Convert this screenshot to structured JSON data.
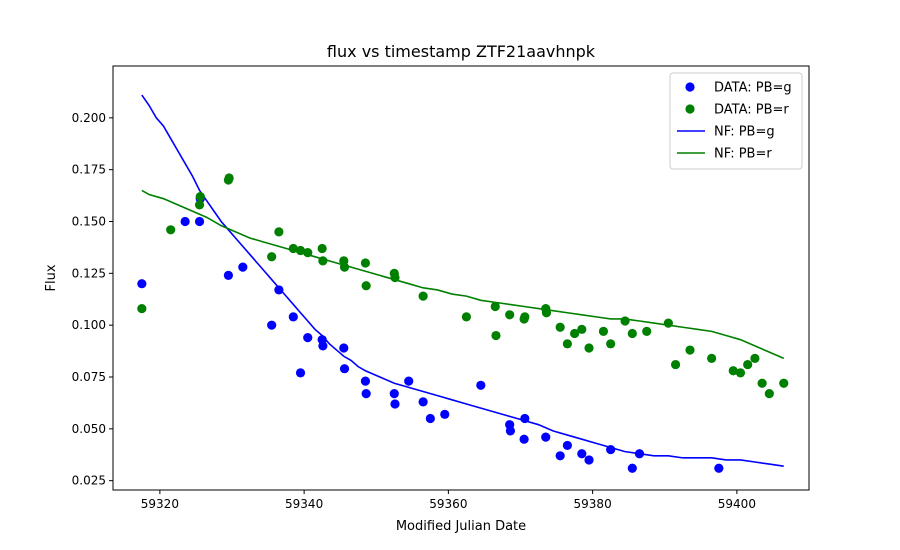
{
  "chart_data": {
    "type": "scatter",
    "title": "flux vs timestamp ZTF21aavhnpk",
    "xlabel": "Modified Julian Date",
    "ylabel": "Flux",
    "xlim": [
      59313.5,
      59410
    ],
    "ylim": [
      0.0205,
      0.225
    ],
    "x_ticks": [
      59320,
      59340,
      59360,
      59380,
      59400
    ],
    "y_ticks": [
      0.025,
      0.05,
      0.075,
      0.1,
      0.125,
      0.15,
      0.175,
      0.2
    ],
    "x_tick_labels": [
      "59320",
      "59340",
      "59360",
      "59380",
      "59400"
    ],
    "y_tick_labels": [
      "0.025",
      "0.050",
      "0.075",
      "0.100",
      "0.125",
      "0.150",
      "0.175",
      "0.200"
    ],
    "grid": false,
    "legend_position": "top-right",
    "series": [
      {
        "name": "DATA: PB=g",
        "kind": "scatter",
        "color": "#0000ff",
        "points": [
          [
            59317.5,
            0.12
          ],
          [
            59323.5,
            0.15
          ],
          [
            59325.5,
            0.15
          ],
          [
            59325.6,
            0.161
          ],
          [
            59329.5,
            0.124
          ],
          [
            59331.5,
            0.128
          ],
          [
            59335.5,
            0.1
          ],
          [
            59336.5,
            0.117
          ],
          [
            59338.5,
            0.104
          ],
          [
            59339.5,
            0.077
          ],
          [
            59340.5,
            0.094
          ],
          [
            59342.5,
            0.093
          ],
          [
            59342.6,
            0.09
          ],
          [
            59345.5,
            0.089
          ],
          [
            59345.6,
            0.079
          ],
          [
            59348.5,
            0.073
          ],
          [
            59348.6,
            0.067
          ],
          [
            59352.5,
            0.067
          ],
          [
            59352.6,
            0.062
          ],
          [
            59354.5,
            0.073
          ],
          [
            59356.5,
            0.063
          ],
          [
            59357.5,
            0.055
          ],
          [
            59359.5,
            0.057
          ],
          [
            59364.5,
            0.071
          ],
          [
            59368.5,
            0.052
          ],
          [
            59368.6,
            0.049
          ],
          [
            59370.5,
            0.045
          ],
          [
            59370.6,
            0.055
          ],
          [
            59373.5,
            0.046
          ],
          [
            59375.5,
            0.037
          ],
          [
            59376.5,
            0.042
          ],
          [
            59378.5,
            0.038
          ],
          [
            59379.5,
            0.035
          ],
          [
            59382.5,
            0.04
          ],
          [
            59385.5,
            0.031
          ],
          [
            59386.5,
            0.038
          ],
          [
            59397.5,
            0.031
          ]
        ]
      },
      {
        "name": "DATA: PB=r",
        "kind": "scatter",
        "color": "#008000",
        "points": [
          [
            59317.5,
            0.108
          ],
          [
            59321.5,
            0.146
          ],
          [
            59325.5,
            0.158
          ],
          [
            59325.6,
            0.162
          ],
          [
            59329.5,
            0.17
          ],
          [
            59329.6,
            0.171
          ],
          [
            59335.5,
            0.133
          ],
          [
            59336.5,
            0.145
          ],
          [
            59338.5,
            0.137
          ],
          [
            59339.5,
            0.136
          ],
          [
            59340.5,
            0.135
          ],
          [
            59342.5,
            0.137
          ],
          [
            59342.6,
            0.131
          ],
          [
            59345.5,
            0.131
          ],
          [
            59345.6,
            0.128
          ],
          [
            59348.5,
            0.13
          ],
          [
            59348.6,
            0.119
          ],
          [
            59352.5,
            0.125
          ],
          [
            59352.6,
            0.123
          ],
          [
            59356.5,
            0.114
          ],
          [
            59362.5,
            0.104
          ],
          [
            59366.5,
            0.109
          ],
          [
            59366.6,
            0.095
          ],
          [
            59368.5,
            0.105
          ],
          [
            59370.5,
            0.103
          ],
          [
            59370.6,
            0.104
          ],
          [
            59373.5,
            0.108
          ],
          [
            59373.6,
            0.106
          ],
          [
            59375.5,
            0.099
          ],
          [
            59376.5,
            0.091
          ],
          [
            59377.5,
            0.096
          ],
          [
            59378.5,
            0.098
          ],
          [
            59379.5,
            0.089
          ],
          [
            59381.5,
            0.097
          ],
          [
            59382.5,
            0.091
          ],
          [
            59384.5,
            0.102
          ],
          [
            59385.5,
            0.096
          ],
          [
            59387.5,
            0.097
          ],
          [
            59390.5,
            0.101
          ],
          [
            59391.5,
            0.081
          ],
          [
            59393.5,
            0.088
          ],
          [
            59396.5,
            0.084
          ],
          [
            59399.5,
            0.078
          ],
          [
            59400.5,
            0.077
          ],
          [
            59401.5,
            0.081
          ],
          [
            59402.5,
            0.084
          ],
          [
            59403.5,
            0.072
          ],
          [
            59404.5,
            0.067
          ],
          [
            59406.5,
            0.072
          ]
        ]
      },
      {
        "name": "NF: PB=g",
        "kind": "line",
        "color": "#0000ff",
        "points": [
          [
            59317.5,
            0.211
          ],
          [
            59318.5,
            0.206
          ],
          [
            59319.5,
            0.2
          ],
          [
            59320.5,
            0.196
          ],
          [
            59321.5,
            0.19
          ],
          [
            59322.5,
            0.184
          ],
          [
            59323.5,
            0.178
          ],
          [
            59324.5,
            0.172
          ],
          [
            59325.5,
            0.165
          ],
          [
            59326.5,
            0.16
          ],
          [
            59327.5,
            0.155
          ],
          [
            59328.5,
            0.15
          ],
          [
            59329.5,
            0.146
          ],
          [
            59330.5,
            0.142
          ],
          [
            59331.5,
            0.138
          ],
          [
            59332.5,
            0.134
          ],
          [
            59333.5,
            0.13
          ],
          [
            59334.5,
            0.126
          ],
          [
            59335.5,
            0.122
          ],
          [
            59336.5,
            0.118
          ],
          [
            59337.5,
            0.114
          ],
          [
            59338.5,
            0.11
          ],
          [
            59339.5,
            0.106
          ],
          [
            59340.5,
            0.102
          ],
          [
            59341.5,
            0.098
          ],
          [
            59342.5,
            0.095
          ],
          [
            59343.5,
            0.091
          ],
          [
            59344.5,
            0.088
          ],
          [
            59345.5,
            0.085
          ],
          [
            59346.5,
            0.083
          ],
          [
            59347.5,
            0.08
          ],
          [
            59348.5,
            0.078
          ],
          [
            59350.5,
            0.075
          ],
          [
            59352.5,
            0.072
          ],
          [
            59354.5,
            0.07
          ],
          [
            59356.5,
            0.068
          ],
          [
            59358.5,
            0.066
          ],
          [
            59360.5,
            0.064
          ],
          [
            59362.5,
            0.062
          ],
          [
            59364.5,
            0.06
          ],
          [
            59366.5,
            0.058
          ],
          [
            59368.5,
            0.056
          ],
          [
            59370.5,
            0.054
          ],
          [
            59372.5,
            0.052
          ],
          [
            59374.5,
            0.049
          ],
          [
            59376.5,
            0.047
          ],
          [
            59378.5,
            0.045
          ],
          [
            59380.5,
            0.043
          ],
          [
            59382.5,
            0.041
          ],
          [
            59384.5,
            0.039
          ],
          [
            59386.5,
            0.038
          ],
          [
            59388.5,
            0.037
          ],
          [
            59390.5,
            0.037
          ],
          [
            59392.5,
            0.036
          ],
          [
            59394.5,
            0.036
          ],
          [
            59396.5,
            0.036
          ],
          [
            59398.5,
            0.035
          ],
          [
            59400.5,
            0.035
          ],
          [
            59402.5,
            0.034
          ],
          [
            59404.5,
            0.033
          ],
          [
            59406.5,
            0.032
          ]
        ]
      },
      {
        "name": "NF: PB=r",
        "kind": "line",
        "color": "#008000",
        "points": [
          [
            59317.5,
            0.165
          ],
          [
            59318.5,
            0.163
          ],
          [
            59320.5,
            0.161
          ],
          [
            59322.5,
            0.158
          ],
          [
            59324.5,
            0.155
          ],
          [
            59326.5,
            0.152
          ],
          [
            59328.5,
            0.148
          ],
          [
            59330.5,
            0.145
          ],
          [
            59332.5,
            0.142
          ],
          [
            59334.5,
            0.14
          ],
          [
            59336.5,
            0.138
          ],
          [
            59338.5,
            0.136
          ],
          [
            59340.5,
            0.134
          ],
          [
            59342.5,
            0.132
          ],
          [
            59344.5,
            0.13
          ],
          [
            59346.5,
            0.128
          ],
          [
            59348.5,
            0.126
          ],
          [
            59350.5,
            0.124
          ],
          [
            59352.5,
            0.122
          ],
          [
            59354.5,
            0.12
          ],
          [
            59356.5,
            0.118
          ],
          [
            59358.5,
            0.117
          ],
          [
            59360.5,
            0.115
          ],
          [
            59362.5,
            0.114
          ],
          [
            59364.5,
            0.112
          ],
          [
            59366.5,
            0.111
          ],
          [
            59368.5,
            0.11
          ],
          [
            59370.5,
            0.109
          ],
          [
            59372.5,
            0.108
          ],
          [
            59374.5,
            0.107
          ],
          [
            59376.5,
            0.106
          ],
          [
            59378.5,
            0.105
          ],
          [
            59380.5,
            0.104
          ],
          [
            59382.5,
            0.103
          ],
          [
            59384.5,
            0.103
          ],
          [
            59386.5,
            0.102
          ],
          [
            59388.5,
            0.101
          ],
          [
            59390.5,
            0.1
          ],
          [
            59392.5,
            0.099
          ],
          [
            59394.5,
            0.098
          ],
          [
            59396.5,
            0.097
          ],
          [
            59398.5,
            0.095
          ],
          [
            59400.5,
            0.093
          ],
          [
            59402.5,
            0.09
          ],
          [
            59404.5,
            0.087
          ],
          [
            59406.5,
            0.084
          ]
        ]
      }
    ]
  }
}
